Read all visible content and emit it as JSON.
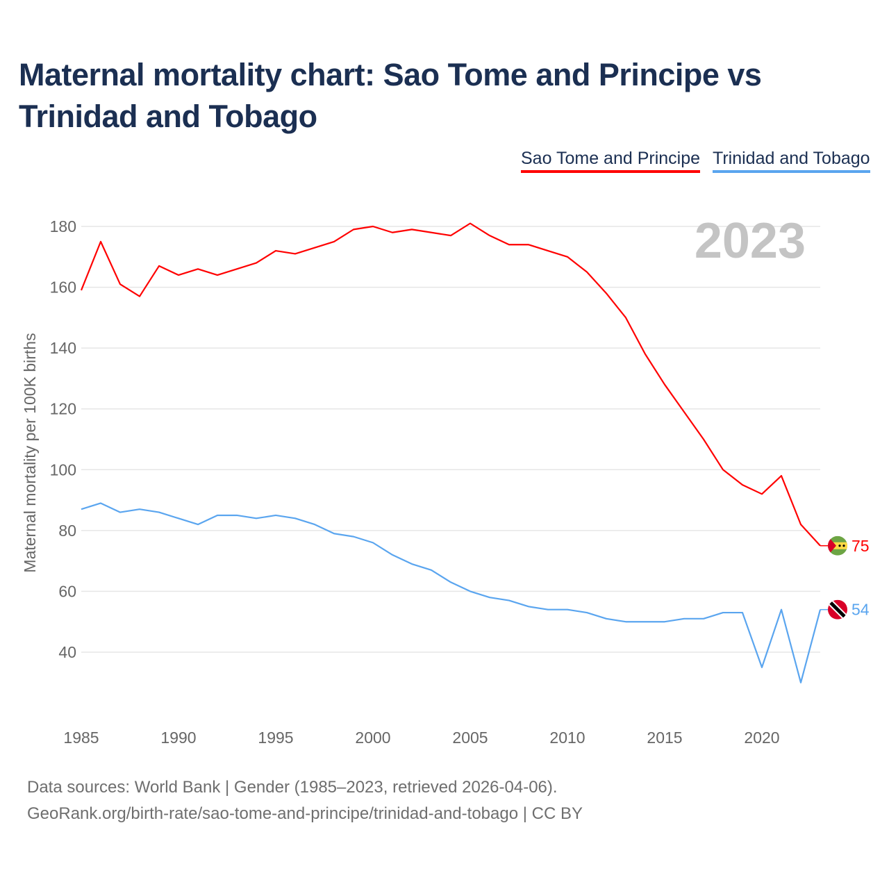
{
  "title": "Maternal mortality chart: Sao Tome and Principe vs Trinidad and Tobago",
  "footer": {
    "sources": "Data sources: World Bank | Gender (1985–2023, retrieved 2026-04-06).",
    "credit": "GeoRank.org/birth-rate/sao-tome-and-principe/trinidad-and-tobago | CC BY"
  },
  "chart_data": {
    "type": "line",
    "title": "Maternal mortality chart: Sao Tome and Principe vs Trinidad and Tobago",
    "ylabel": "Maternal mortality per 100K births",
    "xlabel": "",
    "year_watermark": "2023",
    "x": [
      1985,
      1986,
      1987,
      1988,
      1989,
      1990,
      1991,
      1992,
      1993,
      1994,
      1995,
      1996,
      1997,
      1998,
      1999,
      2000,
      2001,
      2002,
      2003,
      2004,
      2005,
      2006,
      2007,
      2008,
      2009,
      2010,
      2011,
      2012,
      2013,
      2014,
      2015,
      2016,
      2017,
      2018,
      2019,
      2020,
      2021,
      2022,
      2023
    ],
    "xticks": [
      "1985",
      "1990",
      "1995",
      "2000",
      "2005",
      "2010",
      "2015",
      "2020"
    ],
    "yticks": [
      "40",
      "60",
      "80",
      "100",
      "120",
      "140",
      "160",
      "180"
    ],
    "ylim": [
      20,
      185
    ],
    "xlim": [
      1985,
      2023
    ],
    "grid": true,
    "legend_position": "top-right",
    "series": [
      {
        "name": "Sao Tome and Principe",
        "color": "#ff0000",
        "end_label": "75",
        "flag": "sao-tome-flag-icon",
        "values": [
          159,
          175,
          161,
          157,
          167,
          164,
          166,
          164,
          166,
          168,
          172,
          171,
          173,
          175,
          179,
          180,
          178,
          179,
          178,
          177,
          181,
          177,
          174,
          174,
          172,
          170,
          165,
          158,
          150,
          138,
          128,
          119,
          110,
          100,
          95,
          92,
          98,
          82,
          75
        ]
      },
      {
        "name": "Trinidad and Tobago",
        "color": "#5aa5ef",
        "end_label": "54",
        "flag": "trinidad-flag-icon",
        "values": [
          87,
          89,
          86,
          87,
          86,
          84,
          82,
          85,
          85,
          84,
          85,
          84,
          82,
          79,
          78,
          76,
          72,
          69,
          67,
          63,
          60,
          58,
          57,
          55,
          54,
          54,
          53,
          51,
          50,
          50,
          50,
          51,
          51,
          53,
          53,
          35,
          54,
          30,
          54
        ]
      }
    ]
  }
}
